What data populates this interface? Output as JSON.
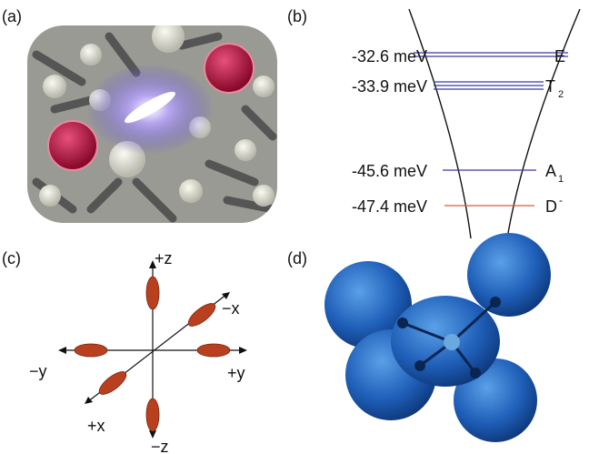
{
  "panels": {
    "a": "(a)",
    "b": "(b)",
    "c": "(c)",
    "d": "(d)"
  },
  "levels": [
    {
      "energy": "-32.6 meV",
      "label": "E",
      "sub": null,
      "sup": null,
      "color": "#3a3aa0"
    },
    {
      "energy": "-33.9 meV",
      "label": "T",
      "sub": "2",
      "sup": null,
      "color": "#3a3aa0"
    },
    {
      "energy": "-45.6 meV",
      "label": "A",
      "sub": "1",
      "sup": null,
      "color": "#3a3aa0"
    },
    {
      "energy": "-47.4 meV",
      "label": "D",
      "sub": null,
      "sup": "-",
      "color": "#e05a2a"
    }
  ],
  "axes": {
    "plus_z": "+z",
    "minus_z": "−z",
    "minus_y": "−y",
    "plus_y": "+y",
    "minus_x": "−x",
    "plus_x": "+x"
  }
}
